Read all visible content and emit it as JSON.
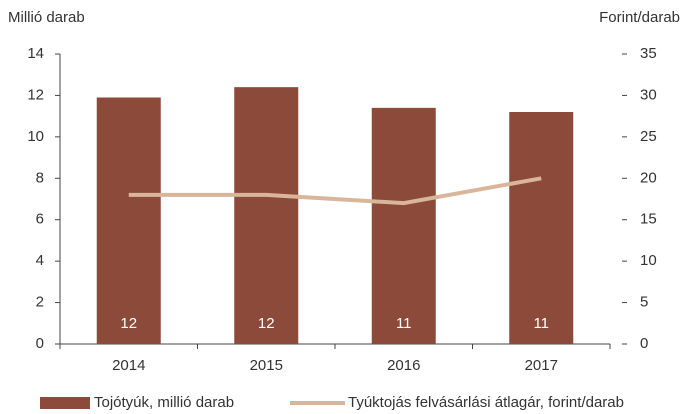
{
  "chart_data": {
    "type": "combo",
    "y_label": "Millió darab",
    "y2_label": "Forint/darab",
    "categories": [
      "2014",
      "2015",
      "2016",
      "2017"
    ],
    "series": [
      {
        "name": "Tojótyúk, millió darab",
        "type": "bar",
        "color": "#8b4a3a",
        "values": [
          11.9,
          12.4,
          11.4,
          11.2
        ],
        "value_labels": [
          "12",
          "12",
          "11",
          "11"
        ]
      },
      {
        "name": "Tyúktojás felvásárlási átlagár, forint/darab",
        "type": "line",
        "axis": "y2",
        "color": "#d9b59a",
        "values": [
          18,
          18,
          17,
          20
        ]
      }
    ],
    "ylim": [
      0,
      14
    ],
    "yticks": [
      0,
      2,
      4,
      6,
      8,
      10,
      12,
      14
    ],
    "y2lim": [
      0,
      35
    ],
    "y2ticks": [
      0,
      5,
      10,
      15,
      20,
      25,
      30,
      35
    ],
    "grid": false,
    "legend": "bottom"
  }
}
